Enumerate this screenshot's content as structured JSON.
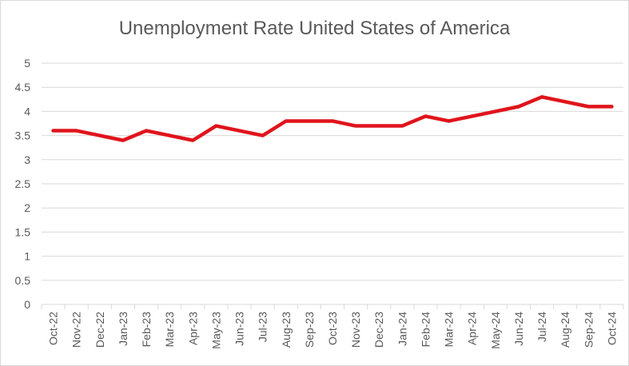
{
  "chart_data": {
    "type": "line",
    "title": "Unemployment Rate United States of America",
    "xlabel": "",
    "ylabel": "",
    "ylim": [
      0,
      5
    ],
    "y_ticks": [
      "0",
      "0.5",
      "1",
      "1.5",
      "2",
      "2.5",
      "3",
      "3.5",
      "4",
      "4.5",
      "5"
    ],
    "grid": true,
    "legend": "none",
    "categories": [
      "Oct-22",
      "Nov-22",
      "Dec-22",
      "Jan-23",
      "Feb-23",
      "Mar-23",
      "Apr-23",
      "May-23",
      "Jun-23",
      "Jul-23",
      "Aug-23",
      "Sep-23",
      "Oct-23",
      "Nov-23",
      "Dec-23",
      "Jan-24",
      "Feb-24",
      "Mar-24",
      "Apr-24",
      "May-24",
      "Jun-24",
      "Jul-24",
      "Aug-24",
      "Sep-24",
      "Oct-24"
    ],
    "series": [
      {
        "values": [
          3.6,
          3.6,
          3.5,
          3.4,
          3.6,
          3.5,
          3.4,
          3.7,
          3.6,
          3.5,
          3.8,
          3.8,
          3.8,
          3.7,
          3.7,
          3.7,
          3.9,
          3.8,
          3.9,
          4.0,
          4.1,
          4.3,
          4.2,
          4.1,
          4.1
        ],
        "color": "#e0141c"
      }
    ],
    "colors": {
      "grid": "#d9d9d9",
      "text": "#595959",
      "line": "#e0141c"
    }
  }
}
